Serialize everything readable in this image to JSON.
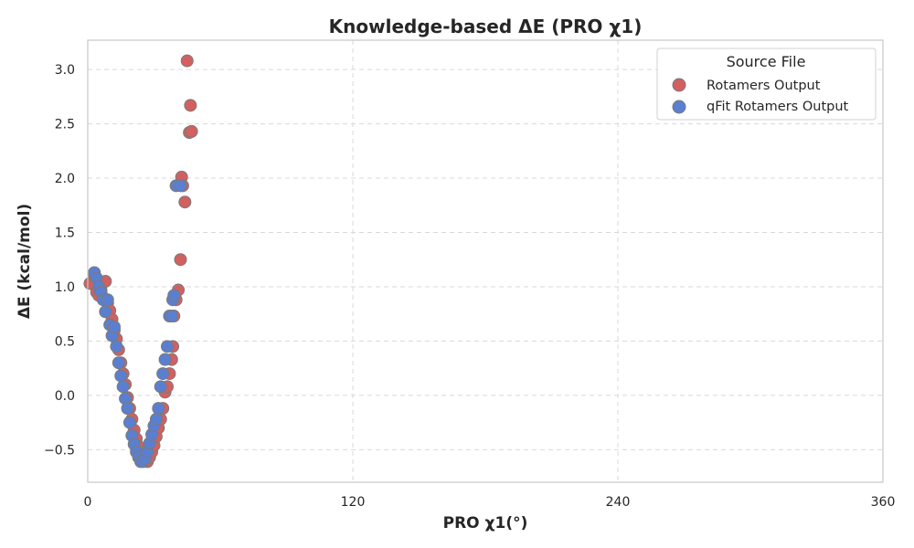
{
  "chart_data": {
    "type": "scatter",
    "title": "Knowledge-based ΔE (PRO χ1)",
    "xlabel": "PRO χ1(°)",
    "ylabel": "ΔE (kcal/mol)",
    "xlim": [
      0,
      360
    ],
    "ylim": [
      -0.8,
      3.27
    ],
    "x_ticks": [
      0,
      120,
      240,
      360
    ],
    "y_ticks": [
      -0.5,
      0.0,
      0.5,
      1.0,
      1.5,
      2.0,
      2.5,
      3.0
    ],
    "x_tick_labels": [
      "0",
      "120",
      "240",
      "360"
    ],
    "y_tick_labels": [
      "−0.5",
      "0.0",
      "0.5",
      "1.0",
      "1.5",
      "2.0",
      "2.5",
      "3.0"
    ],
    "grid": true,
    "legend": {
      "title": "Source File",
      "position": "top-right"
    },
    "series": [
      {
        "name": "Rotamers Output",
        "color": "#d26060",
        "x": [
          1,
          3,
          4,
          5,
          6,
          7,
          8,
          9,
          10,
          11,
          12,
          13,
          14,
          15,
          16,
          17,
          18,
          19,
          20,
          21,
          22,
          23,
          24,
          25,
          26,
          27,
          28,
          29,
          30,
          31,
          32,
          33,
          34,
          35,
          36,
          37,
          38,
          38.5,
          39,
          40,
          41,
          42,
          42.5,
          43,
          44,
          45,
          46,
          46.5,
          47
        ],
        "y": [
          1.03,
          1.1,
          0.95,
          0.92,
          0.97,
          0.9,
          1.05,
          0.85,
          0.78,
          0.7,
          0.6,
          0.52,
          0.42,
          0.3,
          0.2,
          0.1,
          -0.02,
          -0.12,
          -0.22,
          -0.32,
          -0.4,
          -0.47,
          -0.52,
          -0.57,
          -0.6,
          -0.61,
          -0.57,
          -0.52,
          -0.46,
          -0.38,
          -0.3,
          -0.22,
          -0.12,
          0.03,
          0.08,
          0.2,
          0.33,
          0.45,
          0.73,
          0.88,
          0.97,
          1.25,
          2.01,
          1.93,
          1.78,
          3.08,
          2.42,
          2.67,
          2.43
        ]
      },
      {
        "name": "qFit Rotamers Output",
        "color": "#5b7fd0",
        "x": [
          3,
          4,
          5,
          6,
          7,
          8,
          9,
          10,
          11,
          12,
          13,
          14,
          15,
          16,
          17,
          18,
          19,
          20,
          21,
          22,
          23,
          24,
          25,
          26,
          27,
          28,
          29,
          30,
          31,
          32,
          33,
          34,
          35,
          36,
          37,
          38,
          38.5,
          39,
          40,
          42
        ],
        "y": [
          1.13,
          1.08,
          1.0,
          0.95,
          0.88,
          0.77,
          0.88,
          0.65,
          0.55,
          0.63,
          0.45,
          0.3,
          0.18,
          0.08,
          -0.03,
          -0.12,
          -0.25,
          -0.37,
          -0.45,
          -0.52,
          -0.57,
          -0.61,
          -0.61,
          -0.58,
          -0.52,
          -0.44,
          -0.36,
          -0.28,
          -0.22,
          -0.12,
          0.08,
          0.2,
          0.33,
          0.45,
          0.73,
          0.73,
          0.88,
          0.92,
          1.93,
          1.93
        ]
      }
    ]
  }
}
